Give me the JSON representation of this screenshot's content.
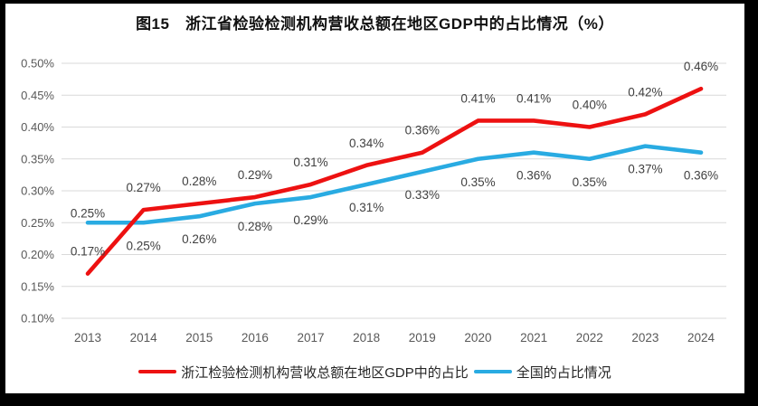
{
  "title": "图15　浙江省检验检测机构营收总额在地区GDP中的占比情况（%）",
  "chart_data": {
    "type": "line",
    "categories": [
      "2013",
      "2014",
      "2015",
      "2016",
      "2017",
      "2018",
      "2019",
      "2020",
      "2021",
      "2022",
      "2023",
      "2024"
    ],
    "series": [
      {
        "id": "zhejiang",
        "name": "浙江检验检测机构营收总额在地区GDP中的占比",
        "color": "#ED1111",
        "label_position": "above",
        "values": [
          0.17,
          0.27,
          0.28,
          0.29,
          0.31,
          0.34,
          0.36,
          0.41,
          0.41,
          0.4,
          0.42,
          0.46
        ],
        "labels": [
          "0.17%",
          "0.27%",
          "0.28%",
          "0.29%",
          "0.31%",
          "0.34%",
          "0.36%",
          "0.41%",
          "0.41%",
          "0.40%",
          "0.42%",
          "0.46%"
        ]
      },
      {
        "id": "national",
        "name": "全国的占比情况",
        "color": "#29ABE2",
        "label_position": "below",
        "values": [
          0.25,
          0.25,
          0.26,
          0.28,
          0.29,
          0.31,
          0.33,
          0.35,
          0.36,
          0.35,
          0.37,
          0.36
        ],
        "labels": [
          "0.25%",
          "0.25%",
          "0.26%",
          "0.28%",
          "0.29%",
          "0.31%",
          "0.33%",
          "0.35%",
          "0.36%",
          "0.35%",
          "0.37%",
          "0.36%"
        ]
      }
    ],
    "ylim": [
      0.1,
      0.5
    ],
    "ytick_labels": [
      "0.50%",
      "0.45%",
      "0.40%",
      "0.35%",
      "0.30%",
      "0.25%",
      "0.20%",
      "0.15%",
      "0.10%"
    ],
    "xlabel": "",
    "ylabel": "",
    "grid": "horizontal",
    "legend_position": "bottom"
  },
  "colors": {
    "grid": "#D9D9D9",
    "axis_text": "#595959",
    "data_label": "#404040",
    "frame_border": "#000000",
    "background": "#FFFFFF"
  }
}
